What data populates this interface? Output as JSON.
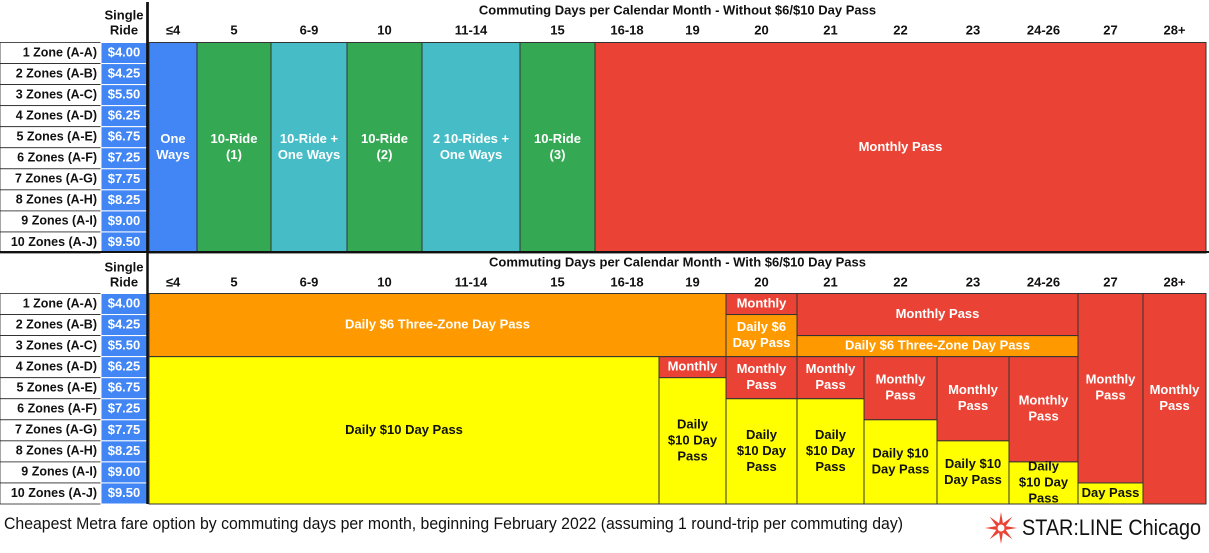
{
  "caption": "Cheapest Metra fare option by commuting days per month, beginning February 2022 (assuming 1 round-trip per commuting day)",
  "brand": "STAR:LINE Chicago",
  "colors": {
    "blue": "#4285f4",
    "green": "#34a853",
    "teal": "#46bdc6",
    "red": "#ea4335",
    "orange": "#ff9900",
    "yellow": "#ffff00",
    "price_bg": "#4285f4",
    "brand_star": "#ea4335"
  },
  "chart_data": {
    "type": "table",
    "ride_header": "Single Ride",
    "zones": [
      {
        "zone": "1 Zone (A-A)",
        "fare": "$4.00"
      },
      {
        "zone": "2 Zones (A-B)",
        "fare": "$4.25"
      },
      {
        "zone": "3 Zones (A-C)",
        "fare": "$5.50"
      },
      {
        "zone": "4 Zones (A-D)",
        "fare": "$6.25"
      },
      {
        "zone": "5 Zones (A-E)",
        "fare": "$6.75"
      },
      {
        "zone": "6 Zones (A-F)",
        "fare": "$7.25"
      },
      {
        "zone": "7 Zones (A-G)",
        "fare": "$7.75"
      },
      {
        "zone": "8 Zones (A-H)",
        "fare": "$8.25"
      },
      {
        "zone": "9 Zones (A-I)",
        "fare": "$9.00"
      },
      {
        "zone": "10 Zones (A-J)",
        "fare": "$9.50"
      }
    ],
    "day_columns": [
      "≤4",
      "5",
      "6-9",
      "10",
      "11-14",
      "15",
      "16-18",
      "19",
      "20",
      "21",
      "22",
      "23",
      "24-26",
      "27",
      "28+"
    ],
    "tables": [
      {
        "title": "Commuting Days per Calendar Month - Without $6/$10 Day Pass",
        "cells": [
          {
            "label": "One Ways",
            "color": "blue",
            "col_start": 0,
            "col_span": 1,
            "row_start": 0,
            "row_span": 10
          },
          {
            "label": "10-Ride (1)",
            "color": "green",
            "col_start": 1,
            "col_span": 1,
            "row_start": 0,
            "row_span": 10
          },
          {
            "label": "10-Ride + One Ways",
            "color": "teal",
            "col_start": 2,
            "col_span": 1,
            "row_start": 0,
            "row_span": 10
          },
          {
            "label": "10-Ride (2)",
            "color": "green",
            "col_start": 3,
            "col_span": 1,
            "row_start": 0,
            "row_span": 10
          },
          {
            "label": "2 10-Rides + One Ways",
            "color": "teal",
            "col_start": 4,
            "col_span": 1,
            "row_start": 0,
            "row_span": 10
          },
          {
            "label": "10-Ride (3)",
            "color": "green",
            "col_start": 5,
            "col_span": 1,
            "row_start": 0,
            "row_span": 10
          },
          {
            "label": "Monthly Pass",
            "color": "red",
            "col_start": 6,
            "col_span": 9,
            "row_start": 0,
            "row_span": 10
          }
        ]
      },
      {
        "title": "Commuting Days per Calendar Month - With $6/$10 Day Pass",
        "cells": [
          {
            "label": "Daily $6 Three-Zone Day Pass",
            "color": "orange",
            "col_start": 0,
            "col_span": 8,
            "row_start": 0,
            "row_span": 3
          },
          {
            "label": "Monthly",
            "color": "red",
            "col_start": 8,
            "col_span": 1,
            "row_start": 0,
            "row_span": 1
          },
          {
            "label": "Daily $6 Day Pass",
            "color": "orange",
            "col_start": 8,
            "col_span": 1,
            "row_start": 1,
            "row_span": 2
          },
          {
            "label": "Monthly Pass",
            "color": "red",
            "col_start": 9,
            "col_span": 4,
            "row_start": 0,
            "row_span": 2
          },
          {
            "label": "Daily $6 Three-Zone Day Pass",
            "color": "orange",
            "col_start": 9,
            "col_span": 4,
            "row_start": 2,
            "row_span": 1
          },
          {
            "label": "Monthly Pass",
            "color": "red",
            "col_start": 13,
            "col_span": 1,
            "row_start": 0,
            "row_span": 9
          },
          {
            "label": "Day Pass",
            "color": "yellow",
            "col_start": 13,
            "col_span": 1,
            "row_start": 9,
            "row_span": 1
          },
          {
            "label": "Monthly Pass",
            "color": "red",
            "col_start": 14,
            "col_span": 1,
            "row_start": 0,
            "row_span": 10
          },
          {
            "label": "Daily $10 Day Pass",
            "color": "yellow",
            "col_start": 0,
            "col_span": 7,
            "row_start": 3,
            "row_span": 7
          },
          {
            "label": "Monthly",
            "color": "red",
            "col_start": 7,
            "col_span": 1,
            "row_start": 3,
            "row_span": 1
          },
          {
            "label": "Daily $10 Day Pass",
            "color": "yellow",
            "col_start": 7,
            "col_span": 1,
            "row_start": 4,
            "row_span": 6
          },
          {
            "label": "Monthly Pass",
            "color": "red",
            "col_start": 8,
            "col_span": 1,
            "row_start": 3,
            "row_span": 2
          },
          {
            "label": "Daily $10 Day Pass",
            "color": "yellow",
            "col_start": 8,
            "col_span": 1,
            "row_start": 5,
            "row_span": 5
          },
          {
            "label": "Monthly Pass",
            "color": "red",
            "col_start": 9,
            "col_span": 1,
            "row_start": 3,
            "row_span": 2
          },
          {
            "label": "Daily $10 Day Pass",
            "color": "yellow",
            "col_start": 9,
            "col_span": 1,
            "row_start": 5,
            "row_span": 5
          },
          {
            "label": "Monthly Pass",
            "color": "red",
            "col_start": 10,
            "col_span": 1,
            "row_start": 3,
            "row_span": 3
          },
          {
            "label": "Daily $10 Day Pass",
            "color": "yellow",
            "col_start": 10,
            "col_span": 1,
            "row_start": 6,
            "row_span": 4
          },
          {
            "label": "Monthly Pass",
            "color": "red",
            "col_start": 11,
            "col_span": 1,
            "row_start": 3,
            "row_span": 4
          },
          {
            "label": "Daily $10 Day Pass",
            "color": "yellow",
            "col_start": 11,
            "col_span": 1,
            "row_start": 7,
            "row_span": 3
          },
          {
            "label": "Monthly Pass",
            "color": "red",
            "col_start": 12,
            "col_span": 1,
            "row_start": 3,
            "row_span": 5
          },
          {
            "label": "Daily $10 Day Pass",
            "color": "yellow",
            "col_start": 12,
            "col_span": 1,
            "row_start": 8,
            "row_span": 2
          }
        ]
      }
    ]
  }
}
